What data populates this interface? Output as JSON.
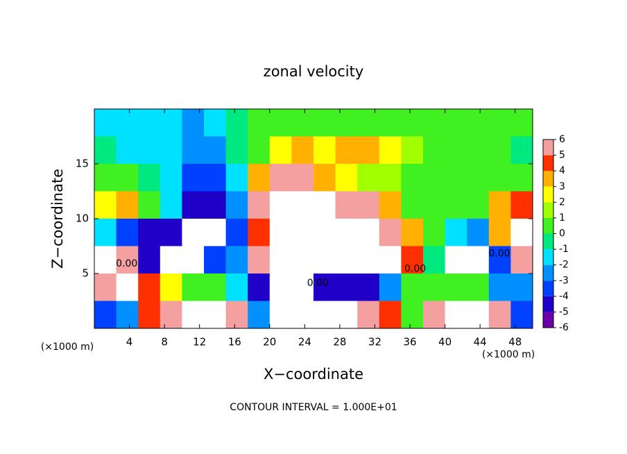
{
  "chart_data": {
    "type": "heatmap",
    "title": "zonal velocity",
    "x_label": "X−coordinate",
    "y_label": "Z−coordinate",
    "x_unit": "(×1000 m)",
    "y_unit": "(×1000 m)",
    "footer": "CONTOUR INTERVAL = 1.000E+01",
    "xlim": [
      0,
      50
    ],
    "ylim": [
      0,
      20
    ],
    "xticks": [
      4,
      8,
      12,
      16,
      20,
      24,
      28,
      32,
      36,
      40,
      44,
      48
    ],
    "yticks": [
      5,
      10,
      15
    ],
    "x": [
      1.25,
      3.75,
      6.25,
      8.75,
      11.25,
      13.75,
      16.25,
      18.75,
      21.25,
      23.75,
      26.25,
      28.75,
      31.25,
      33.75,
      36.25,
      38.75,
      41.25,
      43.75,
      46.25,
      48.75
    ],
    "y": [
      18.75,
      16.25,
      13.75,
      11.25,
      8.75,
      6.25,
      3.75,
      1.25
    ],
    "values": [
      [
        -2,
        -2,
        -2,
        -2,
        -3,
        -2,
        -1,
        0,
        0,
        0,
        0.5,
        0.5,
        0.5,
        0.5,
        0.5,
        0.5,
        0.5,
        0.5,
        0,
        0
      ],
      [
        -1,
        -2,
        -2,
        -2,
        -3,
        -3,
        -1,
        0,
        2,
        3,
        2,
        3,
        3,
        2,
        1,
        0.5,
        0.5,
        0.5,
        0,
        -1
      ],
      [
        0,
        0,
        -1,
        -2,
        -4,
        -4,
        -2,
        3,
        5,
        5,
        3,
        2,
        1,
        1,
        0.5,
        0,
        0,
        0,
        0,
        0
      ],
      [
        2,
        3,
        0,
        -2,
        -5,
        -5,
        -3,
        6,
        8,
        8,
        8,
        6,
        5,
        3,
        0.5,
        0,
        0,
        0,
        3,
        4
      ],
      [
        -2,
        -4,
        -5,
        -5,
        8,
        8,
        -4,
        4,
        8,
        8,
        8,
        8,
        8,
        6,
        3,
        0,
        -2,
        -3,
        3,
        8
      ],
      [
        8,
        6,
        -5,
        8,
        8,
        -4,
        -3,
        5,
        8,
        8,
        8,
        8,
        8,
        8,
        4,
        -1,
        8,
        8,
        -4,
        6
      ],
      [
        5,
        8,
        4,
        2,
        0,
        0,
        -2,
        -5,
        8,
        8,
        -5,
        -5,
        -5,
        -3,
        0,
        0,
        0,
        0,
        -3,
        -3
      ],
      [
        -4,
        -3,
        4,
        6,
        8,
        8,
        5,
        -3,
        8,
        8,
        8,
        8,
        6,
        4,
        0,
        6,
        8,
        8,
        5,
        -4
      ]
    ],
    "colorbar": {
      "ticks": [
        -6,
        -5,
        -4,
        -3,
        -2,
        -1,
        0,
        1,
        2,
        3,
        4,
        5,
        6
      ],
      "colors": [
        "#6a00a8",
        "#2000c8",
        "#0040ff",
        "#0090ff",
        "#00e0ff",
        "#00e880",
        "#40f020",
        "#a0ff00",
        "#ffff00",
        "#ffb000",
        "#ff3000",
        "#f4a0a0"
      ],
      "out_of_range_color": "#ffffff"
    },
    "contour_labels": [
      {
        "x": 3.7,
        "y": 5.9,
        "value": 0,
        "label": "0.00"
      },
      {
        "x": 25.5,
        "y": 4.1,
        "value": 0,
        "label": "0.00"
      },
      {
        "x": 36.6,
        "y": 5.4,
        "value": 0,
        "label": "0.00"
      },
      {
        "x": 46.2,
        "y": 6.8,
        "value": 0,
        "label": "0.00"
      }
    ]
  }
}
